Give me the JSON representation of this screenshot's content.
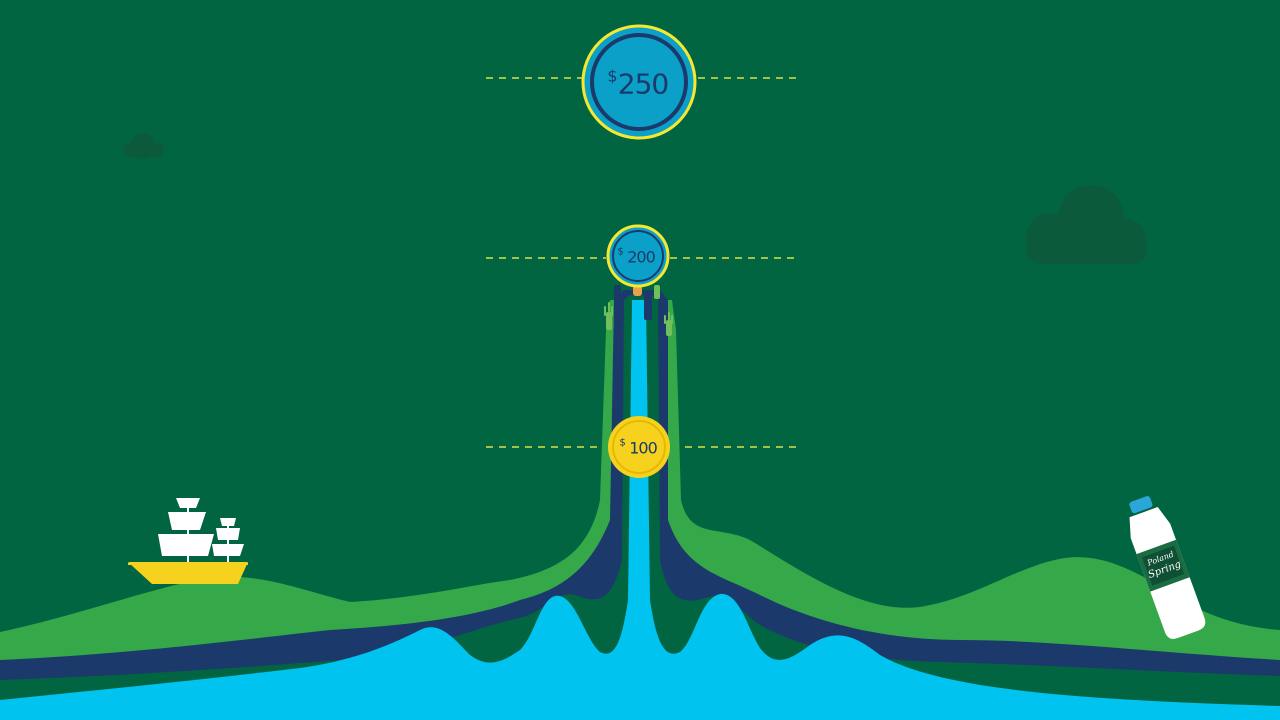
{
  "colors": {
    "background": "#026541",
    "hill_green": "#35a84a",
    "dark_navy": "#1b3a6b",
    "sky_blue": "#00c3f0",
    "coin_yellow": "#f6d21e",
    "cloud": "#0c5a3c"
  },
  "markers": [
    {
      "currency": "$",
      "amount": "250",
      "style": "blue"
    },
    {
      "currency": "$",
      "amount": "200",
      "style": "blue"
    },
    {
      "currency": "$",
      "amount": "100",
      "style": "gold"
    }
  ],
  "bottle": {
    "brand_line1": "Poland",
    "brand_line2": "Spring"
  },
  "icons": [
    "cloud-icon",
    "sailing-ship-icon",
    "water-bottle-icon",
    "raised-hand-icon"
  ]
}
